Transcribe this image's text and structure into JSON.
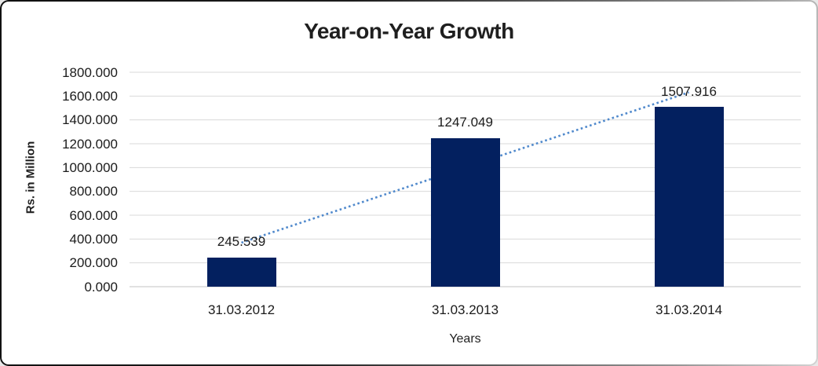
{
  "chart_data": {
    "type": "bar",
    "title": "Year-on-Year Growth",
    "xlabel": "Years",
    "ylabel": "Rs. in Million",
    "categories": [
      "31.03.2012",
      "31.03.2013",
      "31.03.2014"
    ],
    "values": [
      245.539,
      1247.049,
      1507.916
    ],
    "value_labels": [
      "245.539",
      "1247.049",
      "1507.916"
    ],
    "ylim": [
      0,
      1800
    ],
    "ytick_step": 200,
    "ytick_values": [
      1800,
      1600,
      1400,
      1200,
      1000,
      800,
      600,
      400,
      200,
      0
    ],
    "ytick_labels": [
      "1800.000",
      "1600.000",
      "1400.000",
      "1200.000",
      "1000.000",
      "800.000",
      "600.000",
      "400.000",
      "200.000",
      "0.000"
    ],
    "grid": true,
    "legend": "none",
    "bar_color": "#03205f",
    "gridline_color": "#d9d9d9",
    "axisline_color": "#c3c3c3",
    "text_color": "#1b1b1b",
    "trendline": {
      "type": "linear",
      "style": "dotted",
      "color": "#5089cc"
    }
  }
}
